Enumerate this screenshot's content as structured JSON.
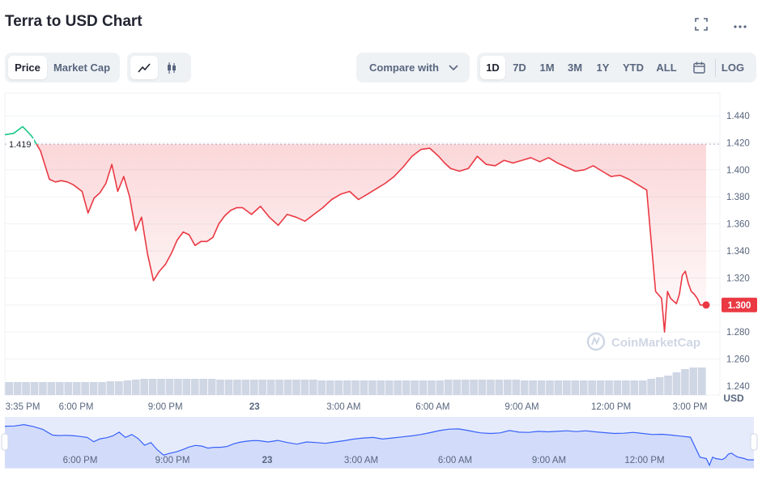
{
  "header": {
    "title": "Terra to USD Chart"
  },
  "icons": {
    "fullscreen": "fullscreen-icon",
    "more": "more-options-icon",
    "line": "line-chart-icon",
    "candle": "candlestick-icon",
    "calendar": "calendar-icon",
    "chevron": "chevron-down-icon"
  },
  "toolbar": {
    "type_tabs": [
      "Price",
      "Market Cap"
    ],
    "active_type": "Price",
    "compare_label": "Compare with",
    "ranges": [
      "1D",
      "7D",
      "1M",
      "3M",
      "1Y",
      "YTD",
      "ALL"
    ],
    "active_range": "1D",
    "log_label": "LOG"
  },
  "chart": {
    "currency_label": "USD",
    "open_value_label": "1.419",
    "current_value_label": "1.300",
    "watermark": "CoinMarketCap",
    "nav_labels": [
      "6:00 PM",
      "9:00 PM",
      "23",
      "3:00 AM",
      "6:00 AM",
      "9:00 AM",
      "12:00 PM"
    ]
  },
  "colors": {
    "up": "#16c784",
    "down": "#ea3943",
    "nav_line": "#3861fb",
    "volume": "#cfd6e4",
    "grid": "#eff2f5"
  },
  "chart_data": {
    "type": "area",
    "title": "Terra to USD Chart",
    "ylabel": "USD",
    "ylim": [
      1.24,
      1.45
    ],
    "yticks": [
      1.24,
      1.26,
      1.28,
      1.3,
      1.32,
      1.34,
      1.36,
      1.38,
      1.4,
      1.42,
      1.44
    ],
    "ytick_labels": [
      "1.240",
      "1.260",
      "1.280",
      "1.300",
      "1.320",
      "1.340",
      "1.360",
      "1.380",
      "1.400",
      "1.420",
      "1.440"
    ],
    "xlim": [
      0,
      23.6
    ],
    "xticks": [
      0,
      2.4,
      5.4,
      8.4,
      11.4,
      14.4,
      17.4,
      20.4,
      23.4
    ],
    "xtick_labels": [
      "3:35 PM",
      "6:00 PM",
      "9:00 PM",
      "23",
      "3:00 AM",
      "6:00 AM",
      "9:00 AM",
      "12:00 PM",
      "3:00 PM"
    ],
    "open_price": 1.419,
    "last_price": 1.3,
    "grid": true,
    "series": [
      {
        "x": [
          0,
          0.3,
          0.6,
          0.9,
          1.2,
          1.5,
          1.7,
          1.9,
          2.1,
          2.3,
          2.6,
          2.8,
          3.0,
          3.2,
          3.4,
          3.6,
          3.8,
          4.0,
          4.2,
          4.4,
          4.6,
          4.8,
          5.0,
          5.2,
          5.4,
          5.6,
          5.8,
          6.0,
          6.2,
          6.4,
          6.6,
          6.8,
          7.0,
          7.2,
          7.4,
          7.6,
          7.8,
          8.0,
          8.3,
          8.6,
          8.9,
          9.2,
          9.5,
          9.8,
          10.1,
          10.4,
          10.7,
          11.0,
          11.3,
          11.6,
          11.9,
          12.2,
          12.5,
          12.8,
          13.1,
          13.4,
          13.7,
          14.0,
          14.3,
          14.6,
          14.8,
          15.0,
          15.3,
          15.6,
          15.9,
          16.2,
          16.5,
          16.8,
          17.1,
          17.4,
          17.7,
          18.0,
          18.3,
          18.6,
          18.9,
          19.2,
          19.5,
          19.8,
          20.1,
          20.4,
          20.7,
          21.0,
          21.3,
          21.6,
          21.9,
          22.1,
          22.2,
          22.3,
          22.4,
          22.5,
          22.6,
          22.7,
          22.8,
          22.9,
          23.0,
          23.1,
          23.2,
          23.3,
          23.4,
          23.5,
          23.6
        ],
        "y": [
          1.426,
          1.427,
          1.432,
          1.425,
          1.414,
          1.393,
          1.391,
          1.392,
          1.391,
          1.389,
          1.384,
          1.368,
          1.379,
          1.383,
          1.39,
          1.404,
          1.384,
          1.395,
          1.38,
          1.355,
          1.365,
          1.338,
          1.318,
          1.325,
          1.33,
          1.338,
          1.348,
          1.354,
          1.352,
          1.344,
          1.347,
          1.347,
          1.35,
          1.36,
          1.366,
          1.37,
          1.372,
          1.372,
          1.367,
          1.373,
          1.365,
          1.359,
          1.367,
          1.365,
          1.362,
          1.367,
          1.372,
          1.378,
          1.382,
          1.384,
          1.378,
          1.382,
          1.386,
          1.39,
          1.395,
          1.402,
          1.41,
          1.415,
          1.416,
          1.41,
          1.405,
          1.401,
          1.399,
          1.401,
          1.41,
          1.404,
          1.403,
          1.407,
          1.405,
          1.407,
          1.409,
          1.406,
          1.409,
          1.405,
          1.402,
          1.399,
          1.4,
          1.403,
          1.399,
          1.395,
          1.396,
          1.393,
          1.389,
          1.385,
          1.31,
          1.305,
          1.28,
          1.31,
          1.305,
          1.303,
          1.301,
          1.308,
          1.322,
          1.325,
          1.316,
          1.31,
          1.308,
          1.305,
          1.3,
          1.3,
          1.3
        ]
      }
    ],
    "volume": [
      0.08,
      0.08,
      0.08,
      0.08,
      0.08,
      0.08,
      0.08,
      0.08,
      0.08,
      0.08,
      0.08,
      0.08,
      0.085,
      0.085,
      0.09,
      0.095,
      0.1,
      0.1,
      0.1,
      0.1,
      0.1,
      0.1,
      0.1,
      0.1,
      0.1,
      0.095,
      0.095,
      0.095,
      0.095,
      0.095,
      0.095,
      0.095,
      0.095,
      0.095,
      0.095,
      0.095,
      0.095,
      0.09,
      0.09,
      0.09,
      0.09,
      0.09,
      0.09,
      0.09,
      0.09,
      0.09,
      0.09,
      0.09,
      0.09,
      0.09,
      0.09,
      0.09,
      0.095,
      0.095,
      0.095,
      0.095,
      0.095,
      0.095,
      0.095,
      0.095,
      0.095,
      0.09,
      0.09,
      0.09,
      0.09,
      0.09,
      0.09,
      0.09,
      0.09,
      0.09,
      0.09,
      0.09,
      0.09,
      0.09,
      0.09,
      0.09,
      0.1,
      0.11,
      0.12,
      0.14,
      0.16,
      0.17,
      0.17
    ]
  }
}
